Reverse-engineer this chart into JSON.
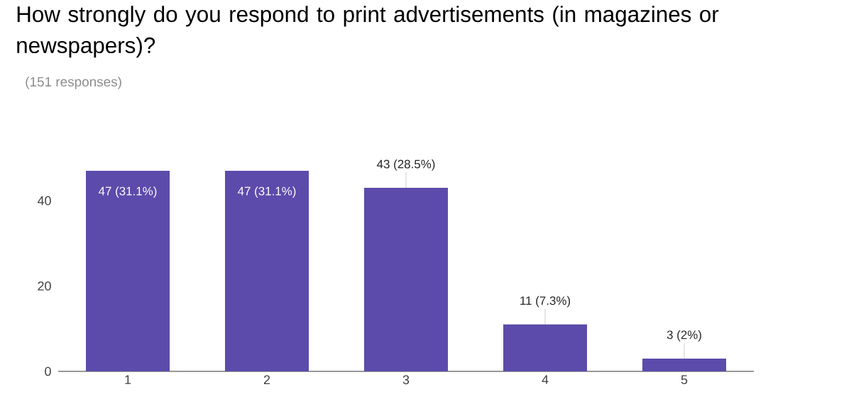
{
  "chart_data": {
    "type": "bar",
    "title": "How strongly do you respond to print advertisements (in magazines or newspapers)?",
    "subtitle": "(151 responses)",
    "categories": [
      "1",
      "2",
      "3",
      "4",
      "5"
    ],
    "values": [
      47,
      47,
      43,
      11,
      3
    ],
    "value_labels": [
      "47 (31.1%)",
      "47 (31.1%)",
      "43 (28.5%)",
      "11 (7.3%)",
      "3 (2%)"
    ],
    "color": "#5c4bab",
    "ylim": [
      0,
      47
    ],
    "yticks": [
      0,
      20,
      40
    ]
  }
}
